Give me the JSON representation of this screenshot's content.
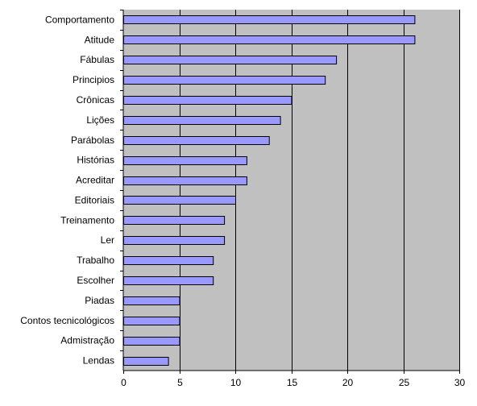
{
  "chart_data": {
    "type": "bar",
    "orientation": "horizontal",
    "categories": [
      "Comportamento",
      "Atitude",
      "Fábulas",
      "Principios",
      "Crônicas",
      "Lições",
      "Parábolas",
      "Histórias",
      "Acreditar",
      "Editoriais",
      "Treinamento",
      "Ler",
      "Trabalho",
      "Escolher",
      "Piadas",
      "Contos tecnicológicos",
      "Admistração",
      "Lendas"
    ],
    "values": [
      26,
      26,
      19,
      18,
      15,
      14,
      13,
      11,
      11,
      10,
      9,
      9,
      8,
      8,
      5,
      5,
      5,
      4
    ],
    "title": "",
    "xlabel": "",
    "ylabel": "",
    "xlim": [
      0,
      30
    ],
    "xticks": [
      0,
      5,
      10,
      15,
      20,
      25,
      30
    ],
    "grid": true,
    "legend": "none",
    "colors": {
      "plot_background": "#c0c0c0",
      "bar_fill": "#9999ff",
      "bar_edge": "#000000",
      "gridline": "#000000"
    }
  }
}
